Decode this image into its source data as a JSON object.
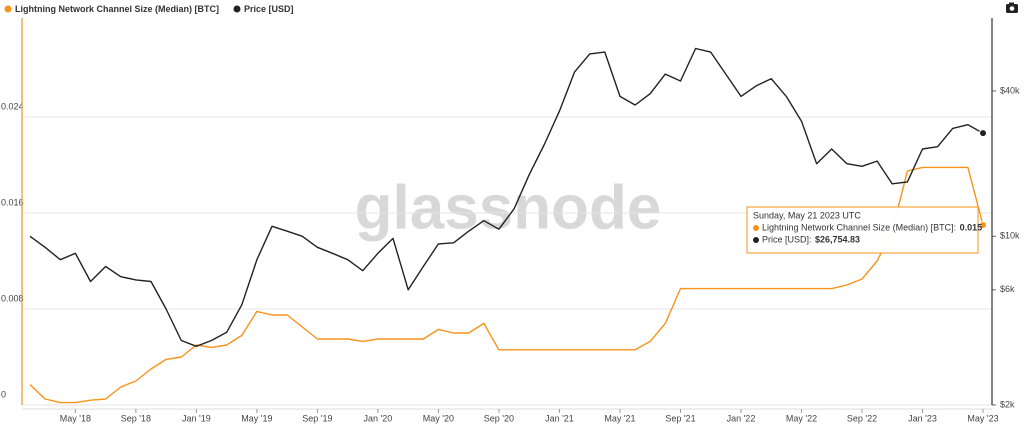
{
  "chart_data": {
    "type": "line",
    "watermark": "glassnode",
    "x": [
      "2018-02",
      "2018-03",
      "2018-04",
      "2018-05",
      "2018-06",
      "2018-07",
      "2018-08",
      "2018-09",
      "2018-10",
      "2018-11",
      "2018-12",
      "2019-01",
      "2019-02",
      "2019-03",
      "2019-04",
      "2019-05",
      "2019-06",
      "2019-07",
      "2019-08",
      "2019-09",
      "2019-10",
      "2019-11",
      "2019-12",
      "2020-01",
      "2020-02",
      "2020-03",
      "2020-04",
      "2020-05",
      "2020-06",
      "2020-07",
      "2020-08",
      "2020-09",
      "2020-10",
      "2020-11",
      "2020-12",
      "2021-01",
      "2021-02",
      "2021-03",
      "2021-04",
      "2021-05",
      "2021-06",
      "2021-07",
      "2021-08",
      "2021-09",
      "2021-10",
      "2021-11",
      "2021-12",
      "2022-01",
      "2022-02",
      "2022-03",
      "2022-04",
      "2022-05",
      "2022-06",
      "2022-07",
      "2022-08",
      "2022-09",
      "2022-10",
      "2022-11",
      "2022-12",
      "2023-01",
      "2023-02",
      "2023-03",
      "2023-04",
      "2023-05"
    ],
    "series": [
      {
        "name": "Lightning Network Channel Size (Median) [BTC]",
        "color": "#f7931a",
        "axis": "y",
        "values": [
          0.0017,
          0.0005,
          0.0002,
          0.0002,
          0.0004,
          0.0005,
          0.0015,
          0.002,
          0.003,
          0.0038,
          0.004,
          0.005,
          0.0048,
          0.005,
          0.0058,
          0.0078,
          0.0075,
          0.0075,
          0.0065,
          0.0055,
          0.0055,
          0.0055,
          0.0053,
          0.0055,
          0.0055,
          0.0055,
          0.0055,
          0.0063,
          0.006,
          0.006,
          0.0068,
          0.0046,
          0.0046,
          0.0046,
          0.0046,
          0.0046,
          0.0046,
          0.0046,
          0.0046,
          0.0046,
          0.0046,
          0.0053,
          0.0068,
          0.0097,
          0.0097,
          0.0097,
          0.0097,
          0.0097,
          0.0097,
          0.0097,
          0.0097,
          0.0097,
          0.0097,
          0.0097,
          0.01,
          0.0105,
          0.012,
          0.0145,
          0.0195,
          0.0198,
          0.0198,
          0.0198,
          0.0198,
          0.015
        ]
      },
      {
        "name": "Price [USD]",
        "color": "#222222",
        "axis": "y2",
        "values": [
          10000,
          9000,
          8000,
          8500,
          6500,
          7500,
          6800,
          6600,
          6500,
          5000,
          3700,
          3500,
          3700,
          4000,
          5200,
          8000,
          11000,
          10500,
          10000,
          9000,
          8500,
          8000,
          7200,
          8500,
          9800,
          6000,
          7500,
          9300,
          9400,
          10500,
          11600,
          10700,
          13000,
          18000,
          24000,
          33000,
          48000,
          57000,
          58000,
          38000,
          35000,
          39000,
          47000,
          44000,
          60000,
          58000,
          47000,
          38000,
          42000,
          45000,
          38000,
          30000,
          20000,
          23000,
          20000,
          19500,
          20500,
          16500,
          16800,
          23000,
          23500,
          28000,
          29000,
          26754.83
        ]
      }
    ],
    "xlim": [
      "2018-02",
      "2023-05"
    ],
    "xticks": [
      {
        "value": "2018-05",
        "label": "May '18"
      },
      {
        "value": "2018-09",
        "label": "Sep '18"
      },
      {
        "value": "2019-01",
        "label": "Jan '19"
      },
      {
        "value": "2019-05",
        "label": "May '19"
      },
      {
        "value": "2019-09",
        "label": "Sep '19"
      },
      {
        "value": "2020-01",
        "label": "Jan '20"
      },
      {
        "value": "2020-05",
        "label": "May '20"
      },
      {
        "value": "2020-09",
        "label": "Sep '20"
      },
      {
        "value": "2021-01",
        "label": "Jan '21"
      },
      {
        "value": "2021-05",
        "label": "May '21"
      },
      {
        "value": "2021-09",
        "label": "Sep '21"
      },
      {
        "value": "2022-01",
        "label": "Jan '22"
      },
      {
        "value": "2022-05",
        "label": "May '22"
      },
      {
        "value": "2022-09",
        "label": "Sep '22"
      },
      {
        "value": "2023-01",
        "label": "Jan '23"
      },
      {
        "value": "2023-05",
        "label": "May '23"
      }
    ],
    "ylim": [
      0,
      0.032
    ],
    "yticks": [
      0,
      0.008,
      0.016,
      0.024
    ],
    "y2lim": [
      2000,
      78000
    ],
    "y2ticks": [
      {
        "value": 2000,
        "label": "$2k"
      },
      {
        "value": 6000,
        "label": "$6k"
      },
      {
        "value": 10000,
        "label": "$10k"
      },
      {
        "value": 40000,
        "label": "$40k"
      }
    ],
    "y2_log": true,
    "grid": true,
    "legend": "top-left",
    "tooltip": {
      "date": "Sunday, May 21 2023 UTC",
      "items": [
        {
          "value": 0.015
        },
        {
          "value": 26754.83,
          "value_label": "$26,754.83"
        }
      ]
    }
  }
}
